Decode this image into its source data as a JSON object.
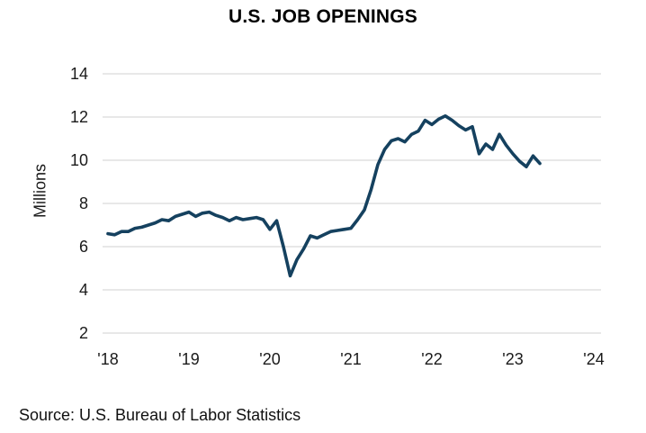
{
  "title": "U.S. JOB OPENINGS",
  "source_note": "Source: U.S. Bureau of Labor Statistics",
  "chart_data": {
    "type": "line",
    "title": "U.S. JOB OPENINGS",
    "xlabel": "",
    "ylabel": "Millions",
    "units": "millions of job openings",
    "grid": true,
    "legend": false,
    "ylim": [
      2,
      14
    ],
    "y_ticks": [
      2,
      4,
      6,
      8,
      10,
      12,
      14
    ],
    "x_tick_labels": [
      "'18",
      "'19",
      "'20",
      "'21",
      "'22",
      "'23",
      "'24"
    ],
    "x_start": "2018-01",
    "x_frequency": "monthly",
    "x_end": "2023-05",
    "series": [
      {
        "name": "U.S. job openings",
        "values": [
          6.6,
          6.55,
          6.7,
          6.7,
          6.85,
          6.9,
          7.0,
          7.1,
          7.25,
          7.2,
          7.4,
          7.5,
          7.6,
          7.4,
          7.55,
          7.6,
          7.45,
          7.35,
          7.2,
          7.35,
          7.25,
          7.3,
          7.35,
          7.25,
          6.8,
          7.2,
          6.0,
          4.65,
          5.4,
          5.9,
          6.5,
          6.4,
          6.55,
          6.7,
          6.75,
          6.8,
          6.85,
          7.25,
          7.7,
          8.65,
          9.8,
          10.5,
          10.9,
          11.0,
          10.85,
          11.2,
          11.35,
          11.85,
          11.65,
          11.9,
          12.05,
          11.85,
          11.6,
          11.4,
          11.55,
          10.3,
          10.75,
          10.5,
          11.2,
          10.7,
          10.3,
          9.95,
          9.7,
          10.2,
          9.85
        ]
      }
    ],
    "line_color": "#15415f",
    "gridline_color": "#d9d9d9",
    "background_color": "#ffffff"
  }
}
